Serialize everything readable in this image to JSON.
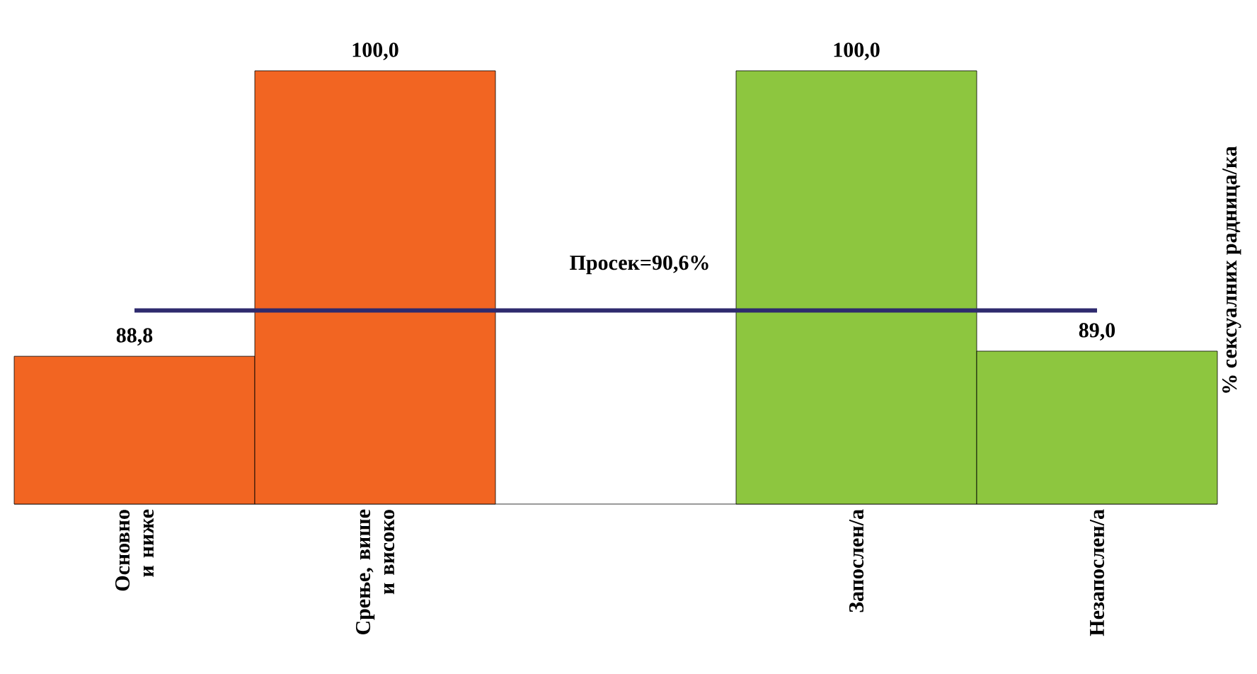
{
  "chart_data": {
    "type": "bar",
    "categories": [
      "Основно и ниже",
      "Срење, више и високо",
      null,
      "Запослен/а",
      "Незапослен/а"
    ],
    "values": [
      88.8,
      100.0,
      null,
      100.0,
      89.0
    ],
    "value_labels": [
      "88,8",
      "100,0",
      null,
      "100,0",
      "89,0"
    ],
    "colors": [
      "#f26522",
      "#f26522",
      null,
      "#8dc63f",
      "#8dc63f"
    ],
    "ylabel": "% сексуалних радница/ка",
    "ylim": [
      83,
      100
    ],
    "ref_lines": [
      {
        "axis": "y",
        "value": 90.6,
        "label": "Просек=90,6%",
        "color": "#2e2a6e"
      }
    ]
  }
}
